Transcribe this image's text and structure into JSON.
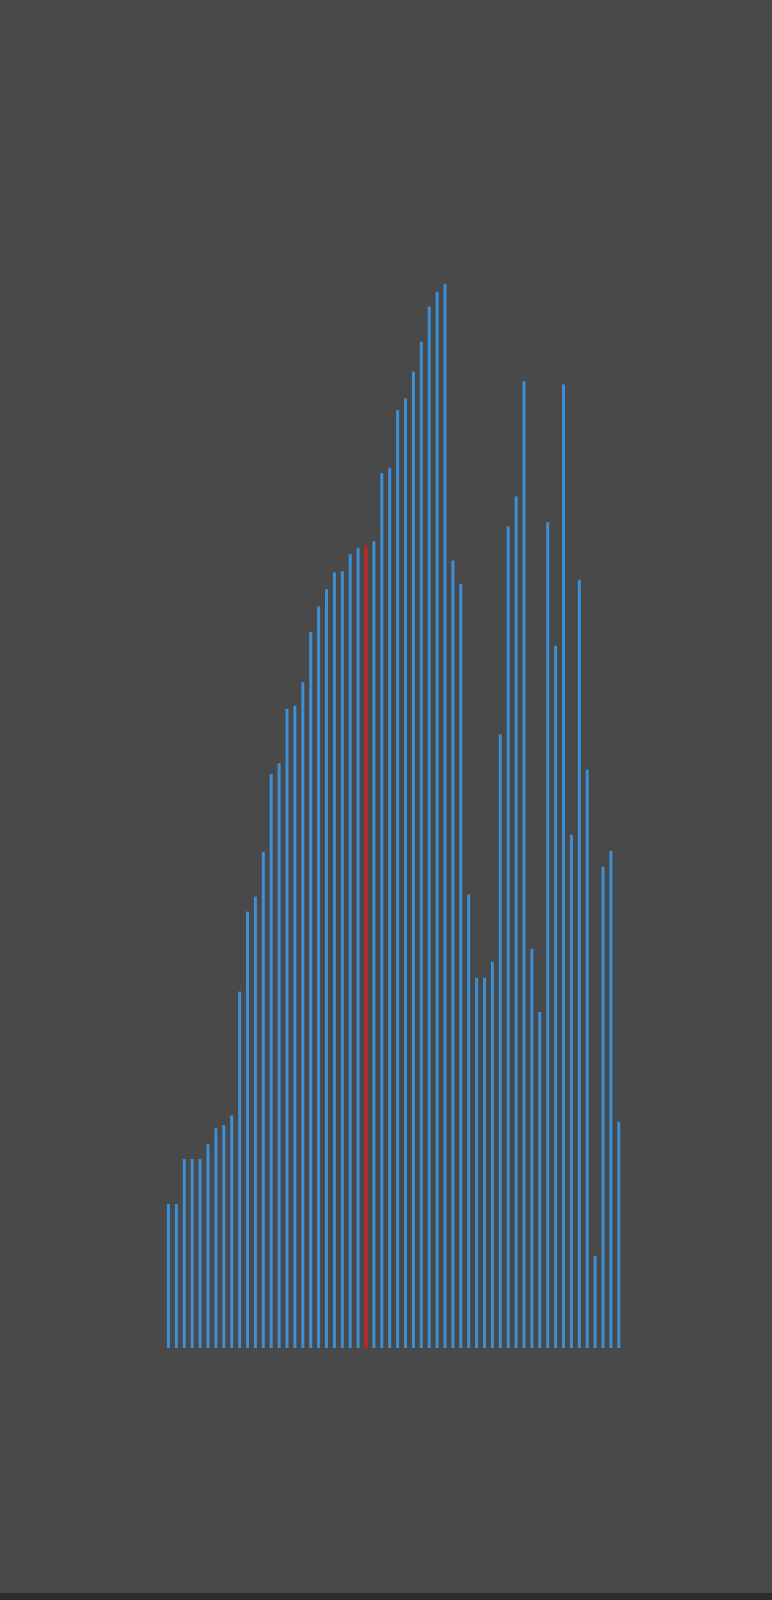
{
  "colors": {
    "background": "#4a4949",
    "bar": "#3d8fd6",
    "highlight": "#cc2222"
  },
  "chart_data": {
    "type": "bar",
    "highlight_index": 25,
    "ylim": [
      0,
      1000
    ],
    "values": [
      135,
      135,
      177,
      177,
      177,
      191,
      206,
      209,
      218,
      334,
      409,
      423,
      465,
      538,
      548,
      599,
      602,
      624,
      671,
      695,
      711,
      727,
      728,
      744,
      750,
      752,
      756,
      820,
      825,
      879,
      890,
      915,
      943,
      976,
      990,
      997,
      738,
      716,
      425,
      347,
      347,
      362,
      575,
      770,
      798,
      906,
      374,
      315,
      774,
      658,
      903,
      481,
      720,
      542,
      86,
      451,
      466,
      212
    ]
  }
}
